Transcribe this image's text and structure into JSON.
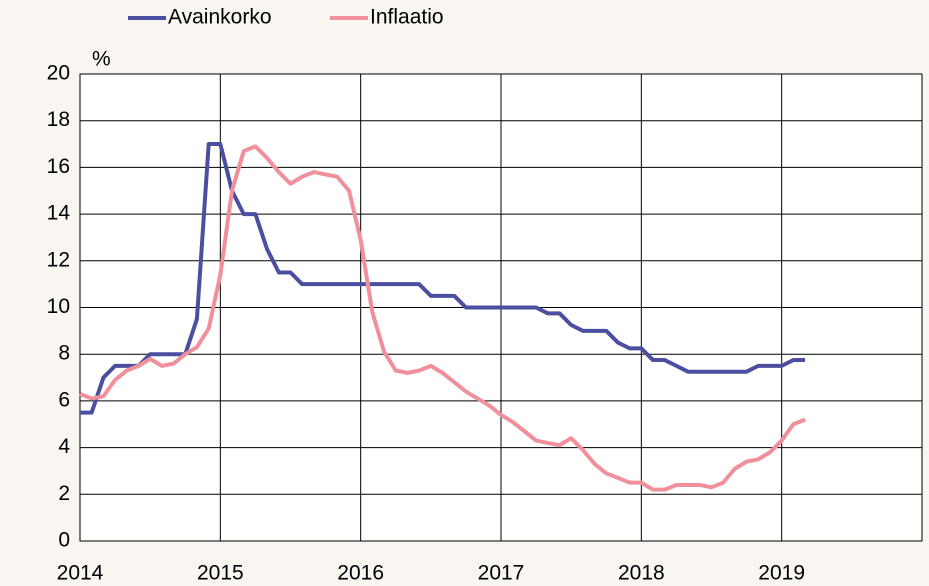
{
  "chart_data": {
    "type": "line",
    "y_label": "%",
    "x": [
      2014,
      2014.083,
      2014.167,
      2014.25,
      2014.333,
      2014.417,
      2014.5,
      2014.583,
      2014.667,
      2014.75,
      2014.833,
      2014.917,
      2015,
      2015.083,
      2015.167,
      2015.25,
      2015.333,
      2015.417,
      2015.5,
      2015.583,
      2015.667,
      2015.75,
      2015.833,
      2015.917,
      2016,
      2016.083,
      2016.167,
      2016.25,
      2016.333,
      2016.417,
      2016.5,
      2016.583,
      2016.667,
      2016.75,
      2016.833,
      2016.917,
      2017,
      2017.083,
      2017.167,
      2017.25,
      2017.333,
      2017.417,
      2017.5,
      2017.583,
      2017.667,
      2017.75,
      2017.833,
      2017.917,
      2018,
      2018.083,
      2018.167,
      2018.25,
      2018.333,
      2018.417,
      2018.5,
      2018.583,
      2018.667,
      2018.75,
      2018.833,
      2018.917,
      2019,
      2019.083,
      2019.167
    ],
    "series": [
      {
        "name": "Avainkorko",
        "color": "#4a4fa0",
        "values": [
          5.5,
          5.5,
          7,
          7.5,
          7.5,
          7.5,
          8,
          8,
          8,
          8,
          9.5,
          17,
          17,
          15,
          14,
          14,
          12.5,
          11.5,
          11.5,
          11,
          11,
          11,
          11,
          11,
          11,
          11,
          11,
          11,
          11,
          11,
          10.5,
          10.5,
          10.5,
          10,
          10,
          10,
          10,
          10,
          10,
          10,
          9.75,
          9.75,
          9.25,
          9,
          9,
          9,
          8.5,
          8.25,
          8.25,
          7.75,
          7.75,
          7.5,
          7.25,
          7.25,
          7.25,
          7.25,
          7.25,
          7.25,
          7.5,
          7.5,
          7.5,
          7.75,
          7.75
        ]
      },
      {
        "name": "Inflaatio",
        "color": "#f0909a",
        "values": [
          6.3,
          6.1,
          6.2,
          6.9,
          7.3,
          7.5,
          7.8,
          7.5,
          7.6,
          8.0,
          8.3,
          9.1,
          11.4,
          15.0,
          16.7,
          16.9,
          16.4,
          15.8,
          15.3,
          15.6,
          15.8,
          15.7,
          15.6,
          15.0,
          12.9,
          9.8,
          8.1,
          7.3,
          7.2,
          7.3,
          7.5,
          7.2,
          6.8,
          6.4,
          6.1,
          5.8,
          5.4,
          5.1,
          4.7,
          4.3,
          4.2,
          4.1,
          4.4,
          3.9,
          3.3,
          2.9,
          2.7,
          2.5,
          2.5,
          2.2,
          2.2,
          2.4,
          2.4,
          2.4,
          2.3,
          2.5,
          3.1,
          3.4,
          3.5,
          3.8,
          4.3,
          5.0,
          5.2
        ]
      }
    ],
    "xlim": [
      2014,
      2020
    ],
    "xticks": [
      2014,
      2015,
      2016,
      2017,
      2018,
      2019
    ],
    "ylim": [
      0,
      20
    ],
    "yticks": [
      0,
      2,
      4,
      6,
      8,
      10,
      12,
      14,
      16,
      18,
      20
    ],
    "grid": true
  }
}
